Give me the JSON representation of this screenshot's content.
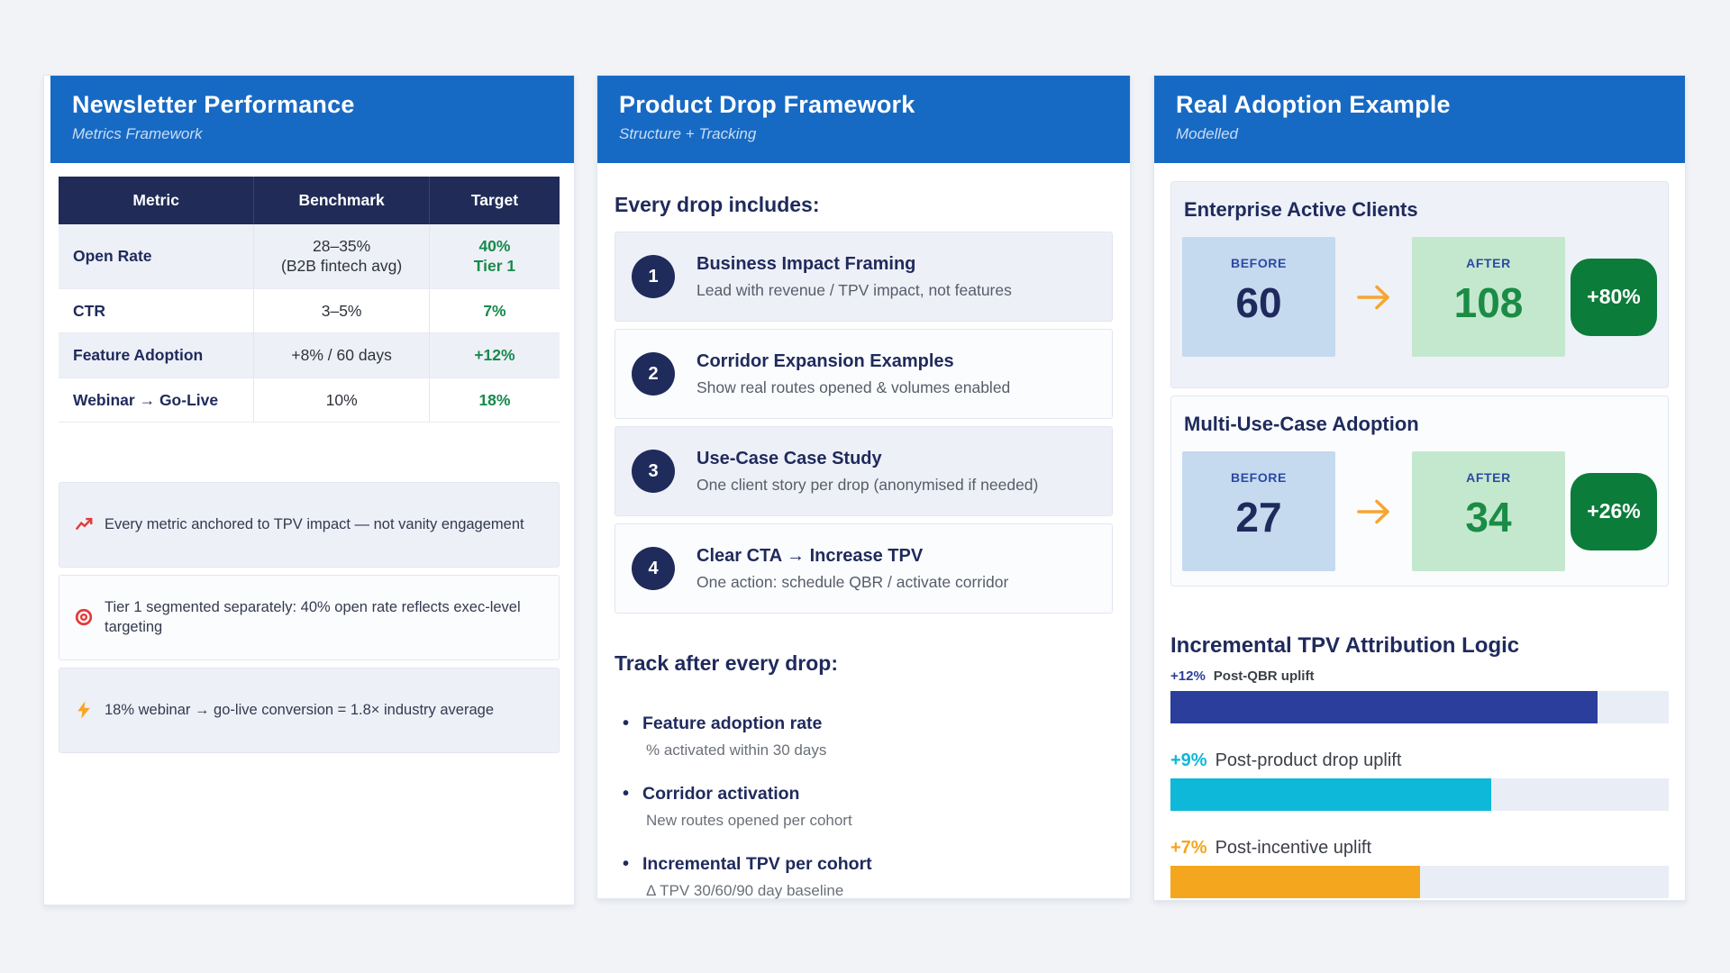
{
  "colors": {
    "page_bg": "#f1f3f7",
    "header_blue": "#176ac4",
    "navy": "#1f2a5c",
    "table_header_bg": "#202b57",
    "target_green": "#178a4c",
    "badge_green": "#0b7c3a",
    "before_blue": "#c5d9ef",
    "after_green": "#c4e8cd",
    "arrow_orange": "#f5a630",
    "bar_indigo": "#2c3e9b",
    "bar_cyan": "#0db8d8",
    "bar_orange": "#f5a61f"
  },
  "newsletter": {
    "title": "Newsletter Performance",
    "subtitle": "Metrics Framework",
    "table": {
      "headers": [
        "Metric",
        "Benchmark",
        "Target"
      ],
      "rows": [
        {
          "metric": "Open Rate",
          "benchmark": [
            "28–35%",
            "(B2B fintech avg)"
          ],
          "target": [
            "40%",
            "Tier 1"
          ]
        },
        {
          "metric": "CTR",
          "benchmark": "3–5%",
          "target": "7%"
        },
        {
          "metric": "Feature Adoption",
          "benchmark": "+8% / 60 days",
          "target": "+12%"
        },
        {
          "metric": "Webinar → Go-Live",
          "benchmark": "10%",
          "target": "18%"
        }
      ]
    },
    "notes": [
      {
        "icon": "chart-increasing-icon",
        "text": "Every metric anchored to TPV impact — not vanity engagement"
      },
      {
        "icon": "target-icon",
        "text": "Tier 1 segmented separately: 40% open rate reflects exec-level targeting"
      },
      {
        "icon": "lightning-icon",
        "text": "18% webinar → go-live conversion = 1.8× industry average"
      }
    ]
  },
  "product_drop": {
    "title": "Product Drop Framework",
    "subtitle": "Structure + Tracking",
    "includes_heading": "Every drop includes:",
    "steps": [
      {
        "num": "1",
        "title": "Business Impact Framing",
        "desc": "Lead with revenue / TPV impact, not features"
      },
      {
        "num": "2",
        "title": "Corridor Expansion Examples",
        "desc": "Show real routes opened & volumes enabled"
      },
      {
        "num": "3",
        "title": "Use-Case Case Study",
        "desc": "One client story per drop (anonymised if needed)"
      },
      {
        "num": "4",
        "title": "Clear CTA → Increase TPV",
        "desc": "One action: schedule QBR / activate corridor"
      }
    ],
    "track_heading": "Track after every drop:",
    "track_items": [
      {
        "title": "Feature adoption rate",
        "desc": "% activated within 30 days"
      },
      {
        "title": "Corridor activation",
        "desc": "New routes opened per cohort"
      },
      {
        "title": "Incremental TPV per cohort",
        "desc": "Δ TPV 30/60/90 day baseline"
      }
    ]
  },
  "adoption": {
    "title": "Real Adoption Example",
    "subtitle": "Modelled",
    "comparisons": [
      {
        "heading": "Enterprise Active Clients",
        "before_label": "BEFORE",
        "before": "60",
        "after_label": "AFTER",
        "after": "108",
        "delta": "+80%"
      },
      {
        "heading": "Multi-Use-Case Adoption",
        "before_label": "BEFORE",
        "before": "27",
        "after_label": "AFTER",
        "after": "34",
        "delta": "+26%"
      }
    ],
    "attribution": {
      "heading": "Incremental TPV Attribution Logic",
      "scale_max": 14,
      "bars": [
        {
          "pct": "+12%",
          "label": "Post-QBR uplift",
          "value": 12,
          "max": 14,
          "color": "#2c3e9b",
          "small": true
        },
        {
          "pct": "+9%",
          "label": "Post-product drop uplift",
          "value": 9,
          "max": 14,
          "color": "#0db8d8",
          "small": false
        },
        {
          "pct": "+7%",
          "label": "Post-incentive uplift",
          "value": 7,
          "max": 14,
          "color": "#f5a61f",
          "small": false
        }
      ]
    }
  }
}
